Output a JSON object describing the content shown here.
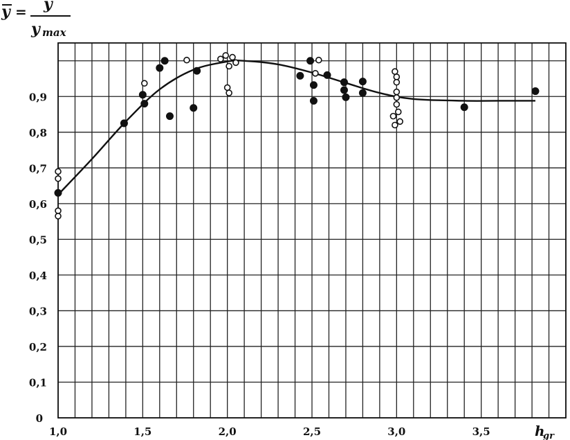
{
  "chart_data": {
    "type": "scatter",
    "ylabel": {
      "lhs": "y",
      "equals": "=",
      "numerator": "y",
      "denominator_base": "y",
      "denominator_sub": "max"
    },
    "xlabel": {
      "base": "h",
      "sub": "gr"
    },
    "xlim": [
      1.0,
      4.0
    ],
    "ylim": [
      0,
      1.05
    ],
    "x_ticks": [
      {
        "value": 1.0,
        "label": "1,0"
      },
      {
        "value": 1.5,
        "label": "1,5"
      },
      {
        "value": 2.0,
        "label": "2,0"
      },
      {
        "value": 2.5,
        "label": "2,5"
      },
      {
        "value": 3.0,
        "label": "3,0"
      },
      {
        "value": 3.5,
        "label": "3,5"
      }
    ],
    "y_ticks": [
      {
        "value": 0.0,
        "label": "0"
      },
      {
        "value": 0.1,
        "label": "0,1"
      },
      {
        "value": 0.2,
        "label": "0,2"
      },
      {
        "value": 0.3,
        "label": "0,3"
      },
      {
        "value": 0.4,
        "label": "0,4"
      },
      {
        "value": 0.5,
        "label": "0,5"
      },
      {
        "value": 0.6,
        "label": "0,6"
      },
      {
        "value": 0.7,
        "label": "0,7"
      },
      {
        "value": 0.8,
        "label": "0,8"
      },
      {
        "value": 0.9,
        "label": "0,9"
      }
    ],
    "grid": true,
    "grid_step": {
      "x": 0.1,
      "y": 0.1
    },
    "series": [
      {
        "marker": "filled-circle",
        "points": [
          [
            1.0,
            0.63
          ],
          [
            1.39,
            0.825
          ],
          [
            1.5,
            0.905
          ],
          [
            1.51,
            0.88
          ],
          [
            1.6,
            0.98
          ],
          [
            1.63,
            1.0
          ],
          [
            1.66,
            0.845
          ],
          [
            1.8,
            0.868
          ],
          [
            1.82,
            0.972
          ],
          [
            2.43,
            0.958
          ],
          [
            2.49,
            1.0
          ],
          [
            2.51,
            0.932
          ],
          [
            2.51,
            0.888
          ],
          [
            2.59,
            0.96
          ],
          [
            2.69,
            0.94
          ],
          [
            2.69,
            0.918
          ],
          [
            2.7,
            0.898
          ],
          [
            2.8,
            0.942
          ],
          [
            2.8,
            0.91
          ],
          [
            3.4,
            0.87
          ],
          [
            3.82,
            0.915
          ]
        ]
      },
      {
        "marker": "open-circle",
        "points": [
          [
            1.0,
            0.69
          ],
          [
            1.0,
            0.67
          ],
          [
            1.0,
            0.58
          ],
          [
            1.0,
            0.565
          ],
          [
            1.51,
            0.937
          ],
          [
            1.76,
            1.002
          ],
          [
            1.96,
            1.005
          ],
          [
            1.99,
            1.015
          ],
          [
            2.01,
            0.985
          ],
          [
            2.03,
            1.01
          ],
          [
            2.05,
            0.995
          ],
          [
            2.0,
            0.925
          ],
          [
            2.01,
            0.91
          ],
          [
            2.52,
            0.965
          ],
          [
            2.54,
            1.002
          ],
          [
            2.99,
            0.97
          ],
          [
            3.0,
            0.955
          ],
          [
            3.0,
            0.94
          ],
          [
            3.0,
            0.913
          ],
          [
            3.0,
            0.897
          ],
          [
            3.0,
            0.878
          ],
          [
            3.01,
            0.857
          ],
          [
            2.98,
            0.845
          ],
          [
            3.02,
            0.83
          ],
          [
            2.99,
            0.82
          ]
        ]
      }
    ],
    "curve": [
      [
        1.0,
        0.625
      ],
      [
        1.2,
        0.725
      ],
      [
        1.4,
        0.83
      ],
      [
        1.6,
        0.92
      ],
      [
        1.8,
        0.975
      ],
      [
        2.0,
        0.998
      ],
      [
        2.1,
        1.0
      ],
      [
        2.3,
        0.99
      ],
      [
        2.5,
        0.967
      ],
      [
        2.7,
        0.938
      ],
      [
        2.9,
        0.91
      ],
      [
        3.1,
        0.893
      ],
      [
        3.4,
        0.888
      ],
      [
        3.6,
        0.888
      ],
      [
        3.82,
        0.888
      ]
    ]
  }
}
